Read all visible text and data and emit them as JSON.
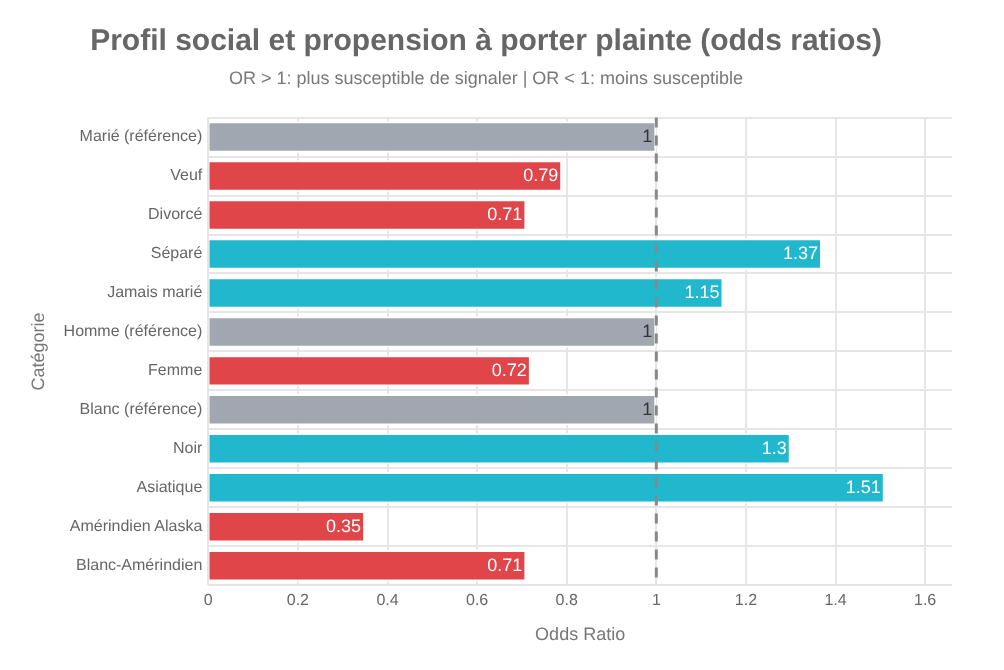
{
  "chart_data": {
    "type": "bar",
    "orientation": "horizontal",
    "title": "Profil social et propension à porter plainte (odds ratios)",
    "subtitle": "OR > 1: plus susceptible de signaler | OR < 1: moins susceptible",
    "xlabel": "Odds Ratio",
    "ylabel": "Catégorie",
    "categories": [
      "Marié (référence)",
      "Veuf",
      "Divorcé",
      "Séparé",
      "Jamais marié",
      "Homme (référence)",
      "Femme",
      "Blanc (référence)",
      "Noir",
      "Asiatique",
      "Amérindien Alaska",
      "Blanc-Amérindien"
    ],
    "values": [
      1,
      0.79,
      0.71,
      1.37,
      1.15,
      1,
      0.72,
      1,
      1.3,
      1.51,
      0.35,
      0.71
    ],
    "colors": [
      "#a0a7b0",
      "#df4549",
      "#df4549",
      "#21b8cd",
      "#21b8cd",
      "#a0a7b0",
      "#df4549",
      "#a0a7b0",
      "#21b8cd",
      "#21b8cd",
      "#df4549",
      "#df4549"
    ],
    "xlim": [
      0,
      1.66
    ],
    "xticks": [
      0,
      0.2,
      0.4,
      0.6,
      0.8,
      1,
      1.2,
      1.4,
      1.6
    ],
    "ref_lines": [
      {
        "axis": "x",
        "value": 1,
        "color": "#888888",
        "line_style": "dashed"
      }
    ],
    "data_labels": true,
    "grid": true,
    "legend": false
  }
}
